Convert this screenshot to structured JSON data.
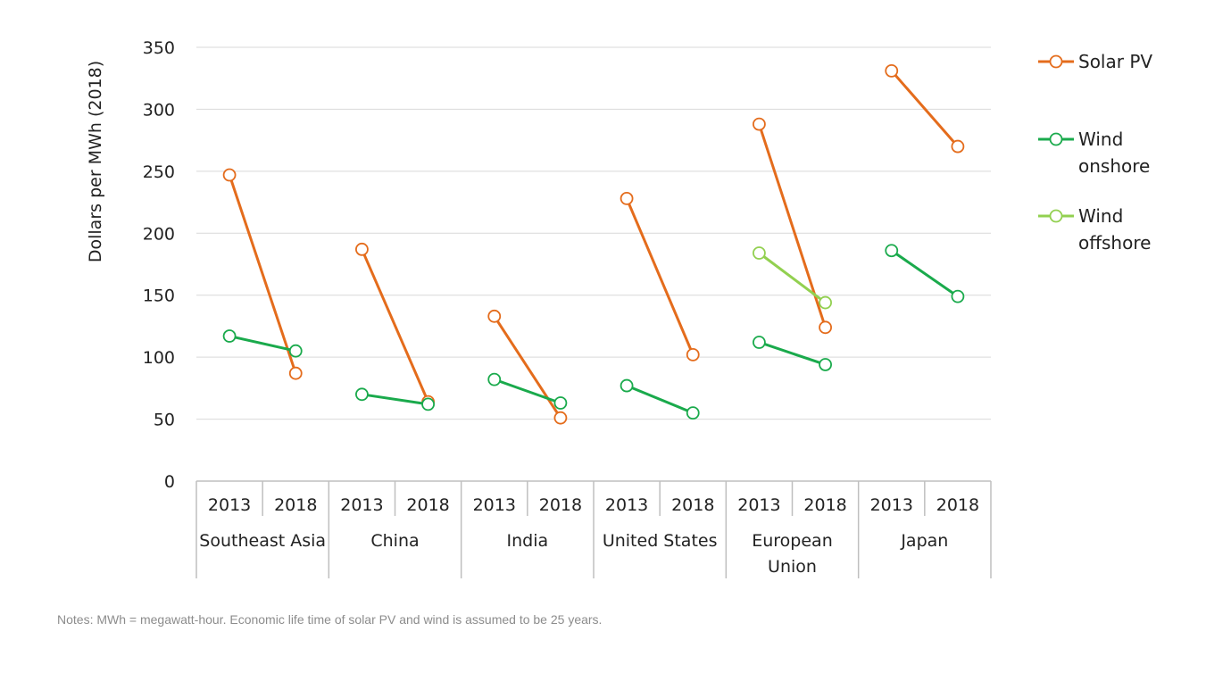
{
  "chart_data": {
    "type": "line",
    "ylabel": "Dollars per MWh (2018)",
    "ylim": [
      0,
      350
    ],
    "yticks": [
      0,
      50,
      100,
      150,
      200,
      250,
      300,
      350
    ],
    "grid": true,
    "legend_position": "right",
    "groups": [
      {
        "label": [
          "Southeast Asia"
        ],
        "years": [
          "2013",
          "2018"
        ]
      },
      {
        "label": [
          "China"
        ],
        "years": [
          "2013",
          "2018"
        ]
      },
      {
        "label": [
          "India"
        ],
        "years": [
          "2013",
          "2018"
        ]
      },
      {
        "label": [
          "United States"
        ],
        "years": [
          "2013",
          "2018"
        ]
      },
      {
        "label": [
          "European",
          "Union"
        ],
        "years": [
          "2013",
          "2018"
        ]
      },
      {
        "label": [
          "Japan"
        ],
        "years": [
          "2013",
          "2018"
        ]
      }
    ],
    "series": [
      {
        "name": [
          "Solar PV"
        ],
        "color": "#e46c1c",
        "values": [
          [
            247,
            87
          ],
          [
            187,
            64
          ],
          [
            133,
            51
          ],
          [
            228,
            102
          ],
          [
            288,
            124
          ],
          [
            331,
            270
          ]
        ]
      },
      {
        "name": [
          "Wind",
          "onshore"
        ],
        "color": "#1aaa4c",
        "values": [
          [
            117,
            105
          ],
          [
            70,
            62
          ],
          [
            82,
            63
          ],
          [
            77,
            55
          ],
          [
            112,
            94
          ],
          [
            186,
            149
          ]
        ]
      },
      {
        "name": [
          "Wind",
          "offshore"
        ],
        "color": "#92d050",
        "values": [
          null,
          null,
          null,
          null,
          [
            184,
            144
          ],
          null
        ]
      }
    ]
  },
  "notes": "Notes: MWh = megawatt-hour. Economic life time of solar PV and wind is assumed to be 25 years."
}
